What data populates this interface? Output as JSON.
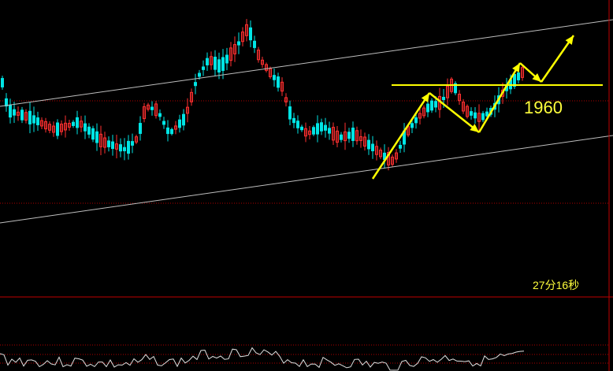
{
  "chart_data": {
    "type": "candlestick",
    "title": "",
    "xlabel": "",
    "ylabel": "",
    "grid": false,
    "legend": "none",
    "colors": {
      "background": "#000000",
      "up_candle": "#ff3030",
      "down_candle": "#00e5e5",
      "channel_line": "#bfbfbf",
      "annotation": "#ffff00",
      "dotted_level": "#b00000",
      "oscillator": "#e0e0e0"
    },
    "annotations": {
      "level_label": "1960",
      "timer_label": "27分16秒"
    }
  }
}
